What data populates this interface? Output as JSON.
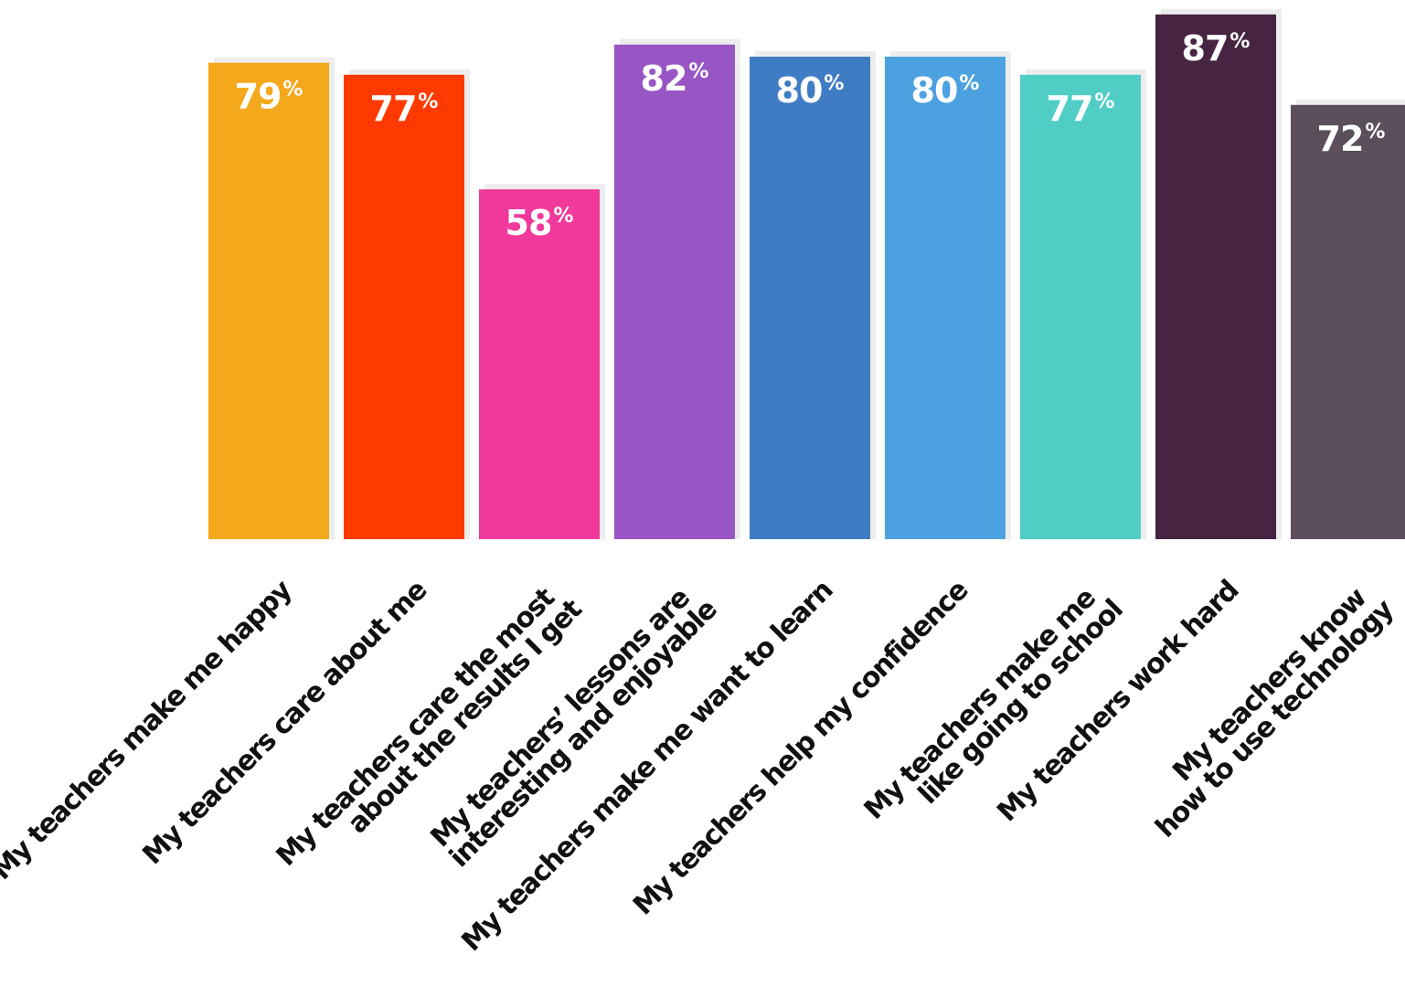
{
  "chart_data": {
    "type": "bar",
    "categories": [
      [
        "My teachers make me happy"
      ],
      [
        "My teachers care about me"
      ],
      [
        "My teachers care the most",
        "about the results I get"
      ],
      [
        "My teachers’ lessons are",
        "interesting and enjoyable"
      ],
      [
        "My teachers make me want to learn"
      ],
      [
        "My teachers help my confidence"
      ],
      [
        "My teachers make me",
        "like going to school"
      ],
      [
        "My teachers work hard"
      ],
      [
        "My teachers know",
        "how to use technology"
      ]
    ],
    "values": [
      79,
      77,
      58,
      82,
      80,
      80,
      77,
      87,
      72
    ],
    "value_suffix": "%",
    "colors": [
      "#F4A81B",
      "#FF3A00",
      "#F0399A",
      "#9856C4",
      "#407CC4",
      "#4CA1E0",
      "#50CEC6",
      "#472542",
      "#5B4F5C"
    ],
    "shadow_color": "#EDEDEE",
    "ylim": [
      0,
      100
    ],
    "grid": false,
    "legend": "none"
  }
}
